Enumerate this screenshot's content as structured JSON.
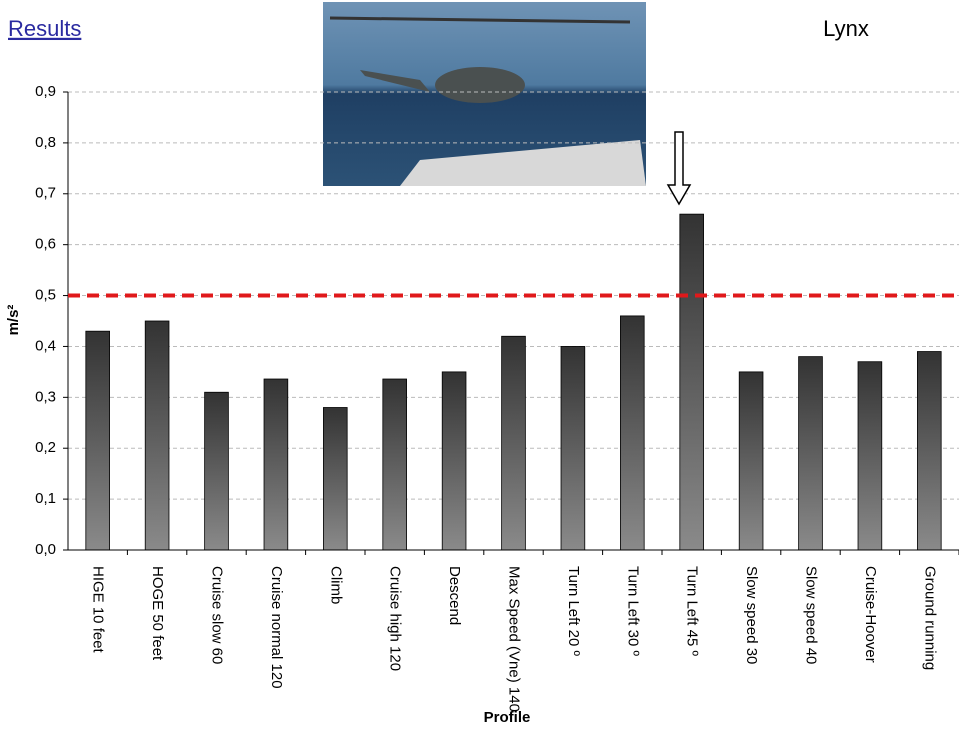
{
  "chart_data": {
    "type": "bar",
    "title": "Lynx",
    "header": "Results",
    "y_label": "m/s²",
    "x_label": "Profile",
    "categories": [
      "HIGE 10 feet",
      "HOGE 50 feet",
      "Cruise slow 60",
      "Cruise normal 120",
      "Climb",
      "Cruise high 120",
      "Descend",
      "Max Speed (Vne) 140",
      "Turn Left 20 º",
      "Turn Left 30 º",
      "Turn Left 45 º",
      "Slow speed 30",
      "Slow speed 40",
      "Cruise-Hoover",
      "Ground running"
    ],
    "values": [
      0.43,
      0.45,
      0.31,
      0.336,
      0.28,
      0.336,
      0.35,
      0.42,
      0.4,
      0.46,
      0.66,
      0.35,
      0.38,
      0.37,
      0.39
    ],
    "color": "#333333",
    "ylim": [
      0,
      0.9
    ],
    "yticks": [
      {
        "value": 0,
        "label": "0,0"
      },
      {
        "value": 0.1,
        "label": "0,1"
      },
      {
        "value": 0.2,
        "label": "0,2"
      },
      {
        "value": 0.3,
        "label": "0,3"
      },
      {
        "value": 0.4,
        "label": "0,4"
      },
      {
        "value": 0.5,
        "label": "0,5"
      },
      {
        "value": 0.6,
        "label": "0,6"
      },
      {
        "value": 0.7,
        "label": "0,7"
      },
      {
        "value": 0.8,
        "label": "0,8"
      },
      {
        "value": 0.9,
        "label": "0,9"
      }
    ],
    "grid": true,
    "threshold": 0.5,
    "threshold_color": "#e0191b"
  }
}
